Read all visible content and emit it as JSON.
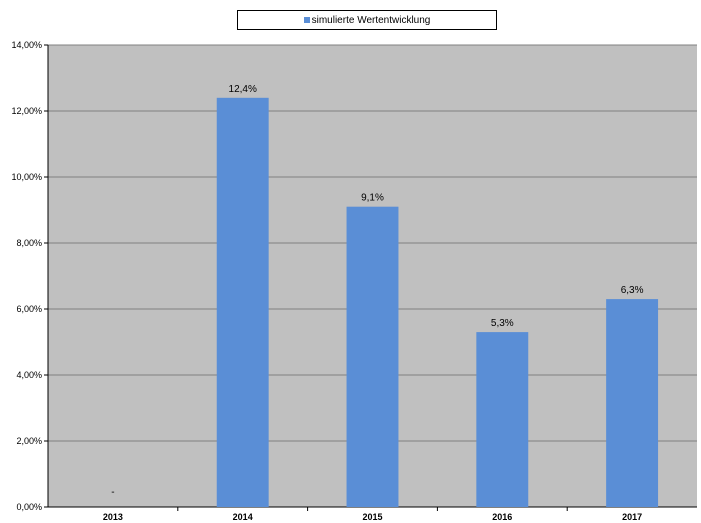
{
  "chart_data": {
    "type": "bar",
    "categories": [
      "2013",
      "2014",
      "2015",
      "2016",
      "2017"
    ],
    "series": [
      {
        "name": "simulierte Wertentwicklung",
        "values": [
          0,
          12.4,
          9.1,
          5.3,
          6.3
        ],
        "data_labels": [
          "-",
          "12,4%",
          "9,1%",
          "5,3%",
          "6,3%"
        ]
      }
    ],
    "ylim": [
      0,
      14
    ],
    "yticks": [
      0,
      2,
      4,
      6,
      8,
      10,
      12,
      14
    ],
    "ytick_labels": [
      "0,00%",
      "2,00%",
      "4,00%",
      "6,00%",
      "8,00%",
      "10,00%",
      "12,00%",
      "14,00%"
    ],
    "grid": true,
    "legend_position": "top",
    "colors": {
      "bar": "#5A8ED6",
      "plot_background": "#C0C0C0",
      "gridline": "#808080"
    }
  }
}
